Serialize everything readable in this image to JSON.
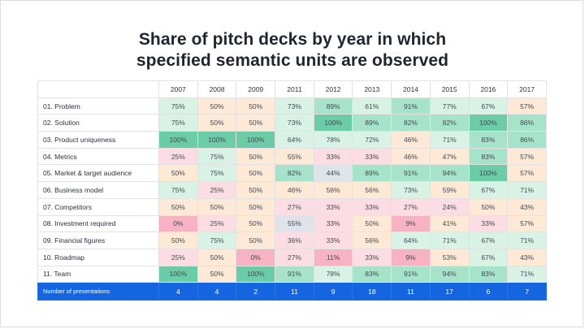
{
  "title_lines": [
    "Share of pitch decks by year in which",
    "specified semantic units are observed"
  ],
  "chart_data": {
    "type": "heatmap",
    "title": "Share of pitch decks by year in which specified semantic units are observed",
    "columns": [
      "2007",
      "2008",
      "2009",
      "2011",
      "2012",
      "2013",
      "2014",
      "2015",
      "2016",
      "2017"
    ],
    "rows": [
      {
        "label": "01. Problem",
        "values": [
          "75%",
          "50%",
          "50%",
          "73%",
          "89%",
          "61%",
          "91%",
          "77%",
          "67%",
          "57%"
        ]
      },
      {
        "label": "02. Solution",
        "values": [
          "75%",
          "50%",
          "50%",
          "73%",
          "100%",
          "89%",
          "82%",
          "82%",
          "100%",
          "86%"
        ]
      },
      {
        "label": "03. Product uniqueness",
        "values": [
          "100%",
          "100%",
          "100%",
          "64%",
          "78%",
          "72%",
          "46%",
          "71%",
          "83%",
          "86%"
        ]
      },
      {
        "label": "04. Metrics",
        "values": [
          "25%",
          "75%",
          "50%",
          "55%",
          "33%",
          "33%",
          "46%",
          "47%",
          "83%",
          "57%"
        ]
      },
      {
        "label": "05. Market & target audience",
        "values": [
          "50%",
          "75%",
          "50%",
          "82%",
          "44%",
          "89%",
          "91%",
          "94%",
          "100%",
          "57%"
        ]
      },
      {
        "label": "06. Business model",
        "values": [
          "75%",
          "25%",
          "50%",
          "46%",
          "56%",
          "56%",
          "73%",
          "59%",
          "67%",
          "71%"
        ]
      },
      {
        "label": "07. Competitors",
        "values": [
          "50%",
          "50%",
          "50%",
          "27%",
          "33%",
          "33%",
          "27%",
          "24%",
          "50%",
          "43%"
        ]
      },
      {
        "label": "08. Investment required",
        "values": [
          "0%",
          "25%",
          "50%",
          "55%",
          "33%",
          "50%",
          "9%",
          "41%",
          "33%",
          "57%"
        ]
      },
      {
        "label": "09. Financial figures",
        "values": [
          "50%",
          "75%",
          "50%",
          "36%",
          "33%",
          "56%",
          "64%",
          "71%",
          "67%",
          "71%"
        ]
      },
      {
        "label": "10. Roadmap",
        "values": [
          "25%",
          "50%",
          "0%",
          "27%",
          "11%",
          "33%",
          "9%",
          "53%",
          "67%",
          "43%"
        ]
      },
      {
        "label": "11. Team",
        "values": [
          "100%",
          "50%",
          "100%",
          "91%",
          "78%",
          "83%",
          "91%",
          "94%",
          "83%",
          "71%"
        ]
      }
    ],
    "footer": {
      "label": "Number of presentations",
      "values": [
        "4",
        "4",
        "2",
        "11",
        "9",
        "18",
        "11",
        "17",
        "6",
        "7"
      ]
    },
    "cell_colors": [
      [
        "#d9f2e6",
        "#fde9d6",
        "#fde9d6",
        "#d9f2e6",
        "#a7e3cb",
        "#d9f2e6",
        "#a7e3cb",
        "#d9f2e6",
        "#d9f2e6",
        "#fde9d6"
      ],
      [
        "#d9f2e6",
        "#fde9d6",
        "#fde9d6",
        "#d9f2e6",
        "#6dcca8",
        "#a7e3cb",
        "#a7e3cb",
        "#a7e3cb",
        "#6dcca8",
        "#a7e3cb"
      ],
      [
        "#6dcca8",
        "#6dcca8",
        "#6dcca8",
        "#d9f2e6",
        "#d9f2e6",
        "#d9f2e6",
        "#fde9d6",
        "#d9f2e6",
        "#a7e3cb",
        "#a7e3cb"
      ],
      [
        "#fbdde3",
        "#d9f2e6",
        "#fde9d6",
        "#fde9d6",
        "#fbdde3",
        "#fbdde3",
        "#fde9d6",
        "#fde9d6",
        "#a7e3cb",
        "#fde9d6"
      ],
      [
        "#fde9d6",
        "#d9f2e6",
        "#fde9d6",
        "#a7e3cb",
        "#dfe3ea",
        "#a7e3cb",
        "#a7e3cb",
        "#a7e3cb",
        "#6dcca8",
        "#fde9d6"
      ],
      [
        "#d9f2e6",
        "#fbdde3",
        "#fde9d6",
        "#fde9d6",
        "#fde9d6",
        "#fde9d6",
        "#d9f2e6",
        "#fde9d6",
        "#d9f2e6",
        "#d9f2e6"
      ],
      [
        "#fde9d6",
        "#fde9d6",
        "#fde9d6",
        "#fbdde3",
        "#fbdde3",
        "#fbdde3",
        "#fbdde3",
        "#fbdde3",
        "#fde9d6",
        "#fde9d6"
      ],
      [
        "#f7b3c3",
        "#fbdde3",
        "#fde9d6",
        "#dfe3ea",
        "#fbdde3",
        "#fde9d6",
        "#f7b3c3",
        "#fde9d6",
        "#fbdde3",
        "#fde9d6"
      ],
      [
        "#fde9d6",
        "#d9f2e6",
        "#fde9d6",
        "#fbdde3",
        "#fbdde3",
        "#fde9d6",
        "#d9f2e6",
        "#d9f2e6",
        "#d9f2e6",
        "#d9f2e6"
      ],
      [
        "#fbdde3",
        "#fde9d6",
        "#f7b3c3",
        "#fbdde3",
        "#f7b3c3",
        "#fbdde3",
        "#f7b3c3",
        "#fde9d6",
        "#d9f2e6",
        "#fde9d6"
      ],
      [
        "#6dcca8",
        "#fde9d6",
        "#6dcca8",
        "#a7e3cb",
        "#d9f2e6",
        "#a7e3cb",
        "#a7e3cb",
        "#a7e3cb",
        "#a7e3cb",
        "#d9f2e6"
      ]
    ]
  }
}
